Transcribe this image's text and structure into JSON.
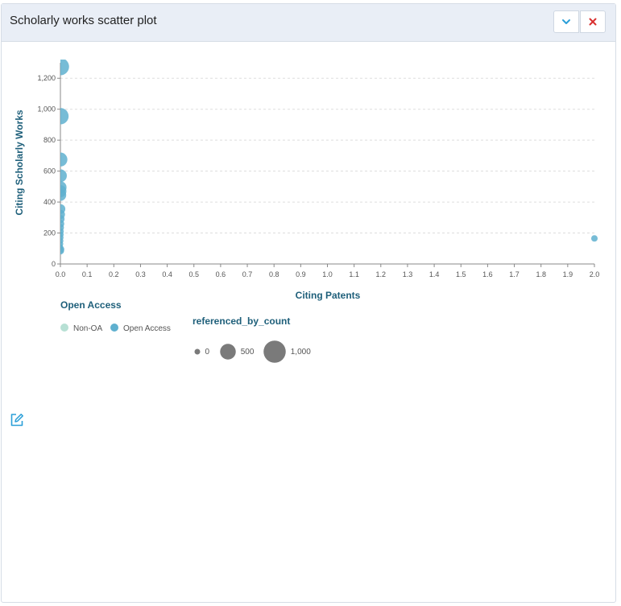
{
  "panel": {
    "title": "Scholarly works scatter plot",
    "collapse_icon": "chevron-down-icon",
    "close_icon": "close-icon",
    "edit_icon": "edit-icon"
  },
  "colors": {
    "header_bg": "#e9eef6",
    "collapse_icon": "#2b9fd8",
    "close_icon": "#d9302f",
    "open_access": "#5fb0cf",
    "non_oa": "#b7e0d4",
    "size_legend": "#7a7a7a",
    "axis_title": "#1e5f7a"
  },
  "chart_data": {
    "type": "scatter",
    "xlabel": "Citing Patents",
    "ylabel": "Citing Scholarly Works",
    "xlim": [
      0,
      2
    ],
    "ylim": [
      0,
      1300
    ],
    "x_ticks": [
      "0.0",
      "0.1",
      "0.2",
      "0.3",
      "0.4",
      "0.5",
      "0.6",
      "0.7",
      "0.8",
      "0.9",
      "1.0",
      "1.1",
      "1.2",
      "1.3",
      "1.4",
      "1.5",
      "1.6",
      "1.7",
      "1.8",
      "1.9",
      "2.0"
    ],
    "y_ticks": [
      "0",
      "200",
      "400",
      "600",
      "800",
      "1,000",
      "1,200"
    ],
    "grid": "horizontal dashed",
    "color_legend": {
      "title": "Open Access",
      "entries": [
        "Non-OA",
        "Open Access"
      ]
    },
    "size_legend": {
      "title": "referenced_by_count",
      "entries": [
        "0",
        "500",
        "1,000"
      ],
      "values": [
        0,
        500,
        1000
      ]
    },
    "series": [
      {
        "name": "Open Access",
        "points": [
          {
            "x": 0,
            "y": 1275,
            "size": 1000
          },
          {
            "x": 0,
            "y": 955,
            "size": 900
          },
          {
            "x": 0,
            "y": 675,
            "size": 650
          },
          {
            "x": 0,
            "y": 570,
            "size": 550
          },
          {
            "x": 0,
            "y": 495,
            "size": 500
          },
          {
            "x": 0,
            "y": 470,
            "size": 480
          },
          {
            "x": 0,
            "y": 445,
            "size": 450
          },
          {
            "x": 0,
            "y": 355,
            "size": 320
          },
          {
            "x": 0,
            "y": 320,
            "size": 280
          },
          {
            "x": 0,
            "y": 290,
            "size": 230
          },
          {
            "x": 0,
            "y": 260,
            "size": 200
          },
          {
            "x": 0,
            "y": 235,
            "size": 170
          },
          {
            "x": 0,
            "y": 210,
            "size": 150
          },
          {
            "x": 0,
            "y": 190,
            "size": 140
          },
          {
            "x": 0,
            "y": 170,
            "size": 130
          },
          {
            "x": 0,
            "y": 150,
            "size": 120
          },
          {
            "x": 0,
            "y": 130,
            "size": 110
          },
          {
            "x": 0,
            "y": 110,
            "size": 100
          },
          {
            "x": 0,
            "y": 95,
            "size": 200
          },
          {
            "x": 0,
            "y": 85,
            "size": 180
          },
          {
            "x": 2,
            "y": 165,
            "size": 140
          }
        ]
      }
    ]
  }
}
